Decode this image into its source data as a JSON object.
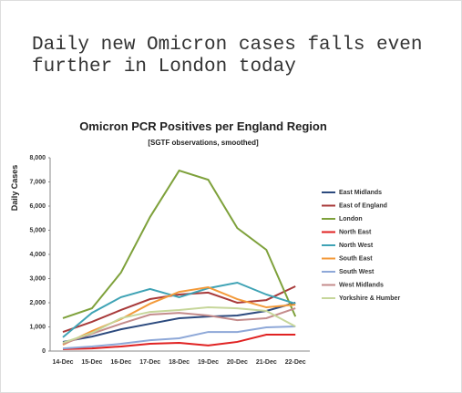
{
  "headline": [
    "Daily new Omicron cases falls even",
    "further in London today"
  ],
  "chart_data": {
    "type": "line",
    "title": "Omicron PCR Positives per England Region",
    "subtitle": "[SGTF observations, smoothed]",
    "y_label": "Daily Cases",
    "categories": [
      "14-Dec",
      "15-Dec",
      "16-Dec",
      "17-Dec",
      "18-Dec",
      "19-Dec",
      "20-Dec",
      "21-Dec",
      "22-Dec"
    ],
    "ylim": [
      0,
      8000
    ],
    "yticks": [
      0,
      {
        "value": 1000,
        "label": "1,000"
      },
      {
        "value": 2000,
        "label": "2,000"
      },
      {
        "value": 3000,
        "label": "3,000"
      },
      {
        "value": 4000,
        "label": "4,000"
      },
      {
        "value": 5000,
        "label": "5,000"
      },
      {
        "value": 6000,
        "label": "6,000"
      },
      {
        "value": 7000,
        "label": "7,000"
      },
      {
        "value": 8000,
        "label": "8,000"
      }
    ],
    "series": [
      {
        "name": "East Midlands",
        "color": "#2c4a7e",
        "values": [
          380,
          600,
          900,
          1130,
          1360,
          1430,
          1470,
          1660,
          2000
        ]
      },
      {
        "name": "East of England",
        "color": "#a83a3a",
        "values": [
          790,
          1210,
          1700,
          2150,
          2340,
          2420,
          2000,
          2110,
          2680
        ]
      },
      {
        "name": "London",
        "color": "#7ea13b",
        "values": [
          1360,
          1770,
          3250,
          5550,
          7470,
          7090,
          5090,
          4190,
          1430
        ]
      },
      {
        "name": "North East",
        "color": "#e02222",
        "values": [
          80,
          110,
          190,
          300,
          340,
          230,
          380,
          680,
          680
        ]
      },
      {
        "name": "North West",
        "color": "#3fa3b5",
        "values": [
          570,
          1580,
          2230,
          2570,
          2230,
          2600,
          2830,
          2340,
          1960
        ]
      },
      {
        "name": "South East",
        "color": "#f39a3a",
        "values": [
          260,
          830,
          1320,
          1960,
          2450,
          2640,
          2150,
          1810,
          1920
        ]
      },
      {
        "name": "South West",
        "color": "#8ea8d8",
        "values": [
          110,
          190,
          300,
          450,
          530,
          790,
          790,
          980,
          1020
        ]
      },
      {
        "name": "West Midlands",
        "color": "#c48c8c",
        "values": [
          300,
          720,
          1130,
          1510,
          1580,
          1470,
          1280,
          1360,
          1770
        ]
      },
      {
        "name": "Yorkshire & Humber",
        "color": "#c6d69a",
        "values": [
          340,
          750,
          1360,
          1620,
          1700,
          1810,
          1770,
          1660,
          1020
        ]
      }
    ]
  }
}
